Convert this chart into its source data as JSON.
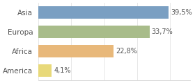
{
  "categories": [
    "America",
    "Africa",
    "Europa",
    "Asia"
  ],
  "values": [
    4.1,
    22.8,
    33.7,
    39.5
  ],
  "labels": [
    "4,1%",
    "22,8%",
    "33,7%",
    "39,5%"
  ],
  "bar_colors": [
    "#e8d97a",
    "#e8b87a",
    "#a8bc8a",
    "#7a9fc2"
  ],
  "background_color": "#ffffff",
  "xlim": [
    0,
    46
  ],
  "bar_height": 0.62
}
